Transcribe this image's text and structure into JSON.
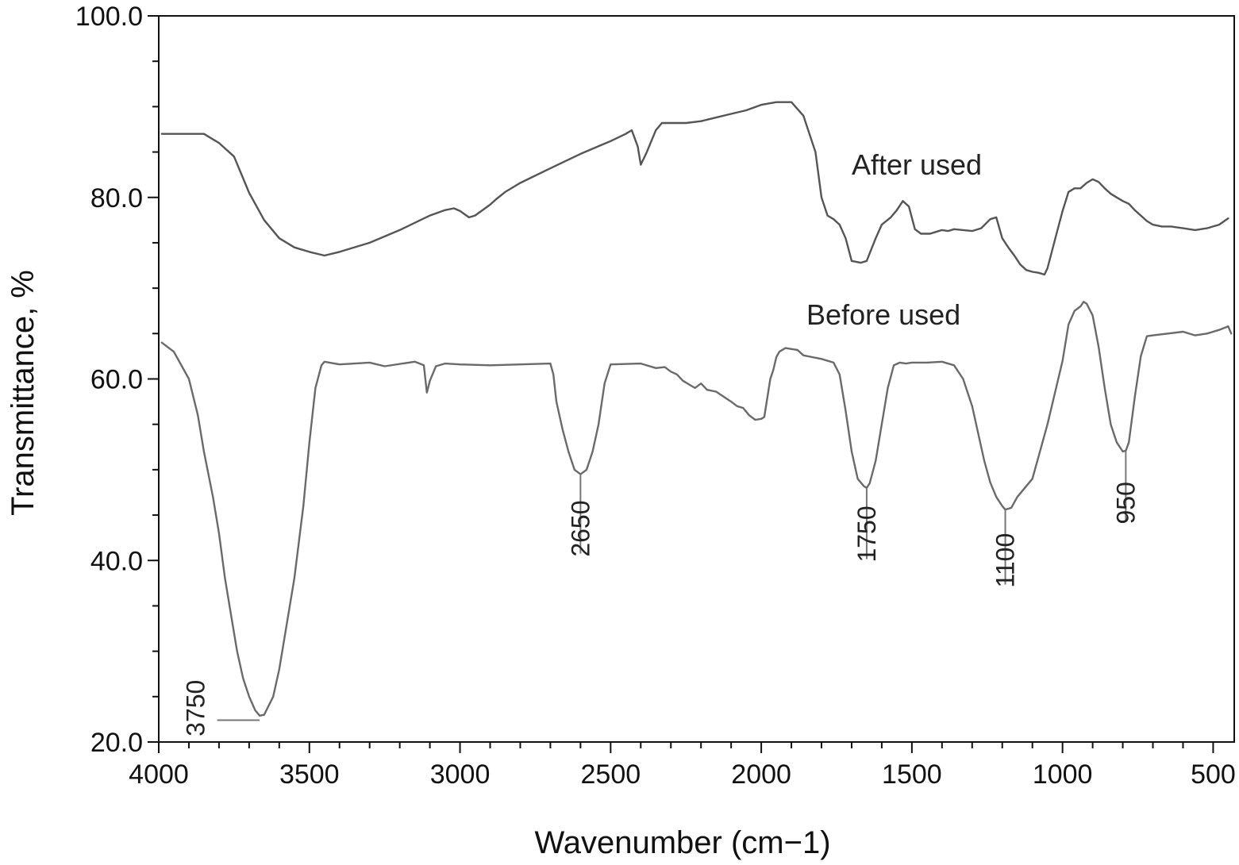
{
  "chart_data": {
    "type": "line",
    "xlabel": "Wavenumber (cm−1)",
    "ylabel": "Transmittance, %",
    "xlim": [
      4000,
      430
    ],
    "ylim": [
      20,
      100
    ],
    "x_reversed": true,
    "x_ticks": [
      4000,
      3500,
      3000,
      2500,
      2000,
      1500,
      1000,
      500
    ],
    "x_tick_labels": [
      "4000",
      "3500",
      "3000",
      "2500",
      "2000",
      "1500",
      "1000",
      "500"
    ],
    "y_ticks": [
      20,
      40,
      60,
      80,
      100
    ],
    "y_tick_labels": [
      "20.0",
      "40.0",
      "60.0",
      "80.0",
      "100.0"
    ],
    "grid": false,
    "colors": {
      "after": "#555555",
      "before": "#6a6a6a",
      "axis": "#111111"
    },
    "series": [
      {
        "name": "After used",
        "label_anchor": {
          "x": 1700,
          "y": 82.5
        },
        "x": [
          3990,
          3850,
          3800,
          3750,
          3700,
          3650,
          3600,
          3550,
          3500,
          3450,
          3400,
          3300,
          3200,
          3100,
          3050,
          3020,
          3000,
          2970,
          2950,
          2900,
          2880,
          2850,
          2800,
          2700,
          2600,
          2500,
          2450,
          2430,
          2410,
          2400,
          2380,
          2350,
          2330,
          2300,
          2250,
          2200,
          2150,
          2100,
          2050,
          2000,
          1950,
          1900,
          1860,
          1820,
          1800,
          1780,
          1760,
          1740,
          1720,
          1700,
          1670,
          1650,
          1620,
          1600,
          1570,
          1550,
          1530,
          1510,
          1490,
          1470,
          1440,
          1420,
          1400,
          1380,
          1360,
          1330,
          1300,
          1270,
          1240,
          1220,
          1200,
          1180,
          1160,
          1140,
          1120,
          1100,
          1080,
          1060,
          1050,
          1020,
          1000,
          980,
          960,
          940,
          920,
          900,
          880,
          860,
          840,
          820,
          800,
          780,
          760,
          740,
          720,
          700,
          670,
          640,
          600,
          560,
          520,
          480,
          450
        ],
        "y": [
          87.0,
          87.0,
          86.0,
          84.5,
          80.5,
          77.5,
          75.5,
          74.5,
          74.0,
          73.6,
          74.0,
          75.0,
          76.4,
          78.0,
          78.6,
          78.8,
          78.5,
          77.8,
          78.0,
          79.2,
          79.8,
          80.6,
          81.6,
          83.2,
          84.8,
          86.2,
          87.0,
          87.4,
          85.6,
          83.6,
          85.0,
          87.4,
          88.2,
          88.2,
          88.2,
          88.4,
          88.8,
          89.2,
          89.6,
          90.2,
          90.5,
          90.5,
          89.0,
          85.0,
          80.0,
          78.0,
          77.6,
          77.0,
          75.5,
          73.0,
          72.8,
          73.0,
          75.5,
          77.0,
          77.8,
          78.6,
          79.6,
          79.0,
          76.5,
          76.0,
          76.0,
          76.2,
          76.4,
          76.3,
          76.5,
          76.4,
          76.3,
          76.6,
          77.6,
          77.8,
          75.5,
          74.5,
          73.6,
          72.6,
          72.0,
          71.8,
          71.7,
          71.5,
          72.2,
          76.0,
          78.5,
          80.6,
          81.0,
          81.0,
          81.6,
          82.0,
          81.7,
          81.0,
          80.4,
          80.0,
          79.6,
          79.3,
          78.6,
          78.0,
          77.4,
          77.0,
          76.8,
          76.8,
          76.6,
          76.4,
          76.6,
          77.0,
          77.7
        ]
      },
      {
        "name": "Before used",
        "label_anchor": {
          "x": 1850,
          "y": 66.0
        },
        "x": [
          3990,
          3950,
          3900,
          3870,
          3850,
          3820,
          3800,
          3780,
          3760,
          3740,
          3720,
          3700,
          3680,
          3665,
          3650,
          3620,
          3600,
          3580,
          3550,
          3520,
          3500,
          3480,
          3460,
          3450,
          3400,
          3300,
          3250,
          3150,
          3120,
          3110,
          3100,
          3080,
          3050,
          3000,
          2900,
          2800,
          2700,
          2690,
          2680,
          2660,
          2640,
          2620,
          2600,
          2580,
          2560,
          2540,
          2520,
          2500,
          2400,
          2350,
          2320,
          2300,
          2280,
          2260,
          2240,
          2220,
          2200,
          2180,
          2150,
          2100,
          2080,
          2060,
          2040,
          2020,
          2000,
          1990,
          1970,
          1960,
          1950,
          1940,
          1920,
          1900,
          1880,
          1860,
          1800,
          1760,
          1740,
          1720,
          1700,
          1680,
          1660,
          1650,
          1640,
          1620,
          1600,
          1580,
          1560,
          1540,
          1520,
          1500,
          1450,
          1400,
          1360,
          1330,
          1300,
          1280,
          1260,
          1240,
          1220,
          1200,
          1190,
          1170,
          1150,
          1100,
          1050,
          1000,
          980,
          960,
          940,
          930,
          920,
          900,
          880,
          860,
          840,
          820,
          800,
          790,
          780,
          760,
          740,
          720,
          700,
          650,
          600,
          560,
          520,
          480,
          450,
          440
        ],
        "y": [
          64.0,
          63.0,
          60.0,
          56.0,
          52.0,
          47.0,
          43.0,
          38.0,
          34.0,
          30.0,
          27.0,
          25.0,
          23.5,
          22.9,
          23.0,
          25.0,
          28.0,
          32.0,
          38.0,
          46.0,
          53.0,
          59.0,
          61.5,
          61.9,
          61.6,
          61.8,
          61.4,
          61.9,
          61.5,
          58.5,
          59.8,
          61.4,
          61.7,
          61.6,
          61.5,
          61.6,
          61.7,
          60.5,
          57.5,
          54.5,
          52.0,
          50.0,
          49.5,
          50.0,
          52.0,
          55.0,
          59.5,
          61.6,
          61.7,
          61.2,
          61.3,
          60.8,
          60.5,
          59.8,
          59.4,
          59.0,
          59.5,
          58.8,
          58.6,
          57.5,
          57.0,
          56.8,
          56.0,
          55.5,
          55.6,
          55.8,
          60.0,
          61.0,
          62.4,
          63.0,
          63.4,
          63.3,
          63.2,
          62.6,
          62.2,
          61.8,
          60.5,
          56.5,
          52.0,
          49.0,
          48.2,
          48.0,
          48.5,
          51.0,
          55.0,
          59.0,
          61.5,
          61.8,
          61.7,
          61.8,
          61.8,
          61.9,
          61.5,
          60.0,
          57.0,
          54.0,
          51.0,
          48.6,
          47.0,
          46.0,
          45.6,
          45.8,
          47.0,
          49.0,
          55.0,
          62.0,
          66.0,
          67.5,
          68.0,
          68.5,
          68.3,
          67.0,
          63.5,
          59.0,
          55.0,
          53.0,
          52.0,
          52.1,
          53.0,
          58.0,
          62.5,
          64.7,
          64.8,
          65.0,
          65.2,
          64.8,
          65.0,
          65.4,
          65.8,
          65.0
        ]
      }
    ],
    "annotations": [
      {
        "label": "3750",
        "x": 3665,
        "y": 22.9,
        "leader": "horizontal",
        "text_x": 3880,
        "text_y": 25.2
      },
      {
        "label": "2650",
        "x": 2600,
        "y": 49.5,
        "leader": "vertical",
        "text_x": 2600,
        "text_y": 40.4
      },
      {
        "label": "1750",
        "x": 1650,
        "y": 48.0,
        "leader": "vertical",
        "text_x": 1650,
        "text_y": 39.8
      },
      {
        "label": "1100",
        "x": 1190,
        "y": 45.6,
        "leader": "vertical",
        "text_x": 1190,
        "text_y": 37.0
      },
      {
        "label": "950",
        "x": 790,
        "y": 52.0,
        "leader": "vertical",
        "text_x": 790,
        "text_y": 44.0
      }
    ]
  }
}
